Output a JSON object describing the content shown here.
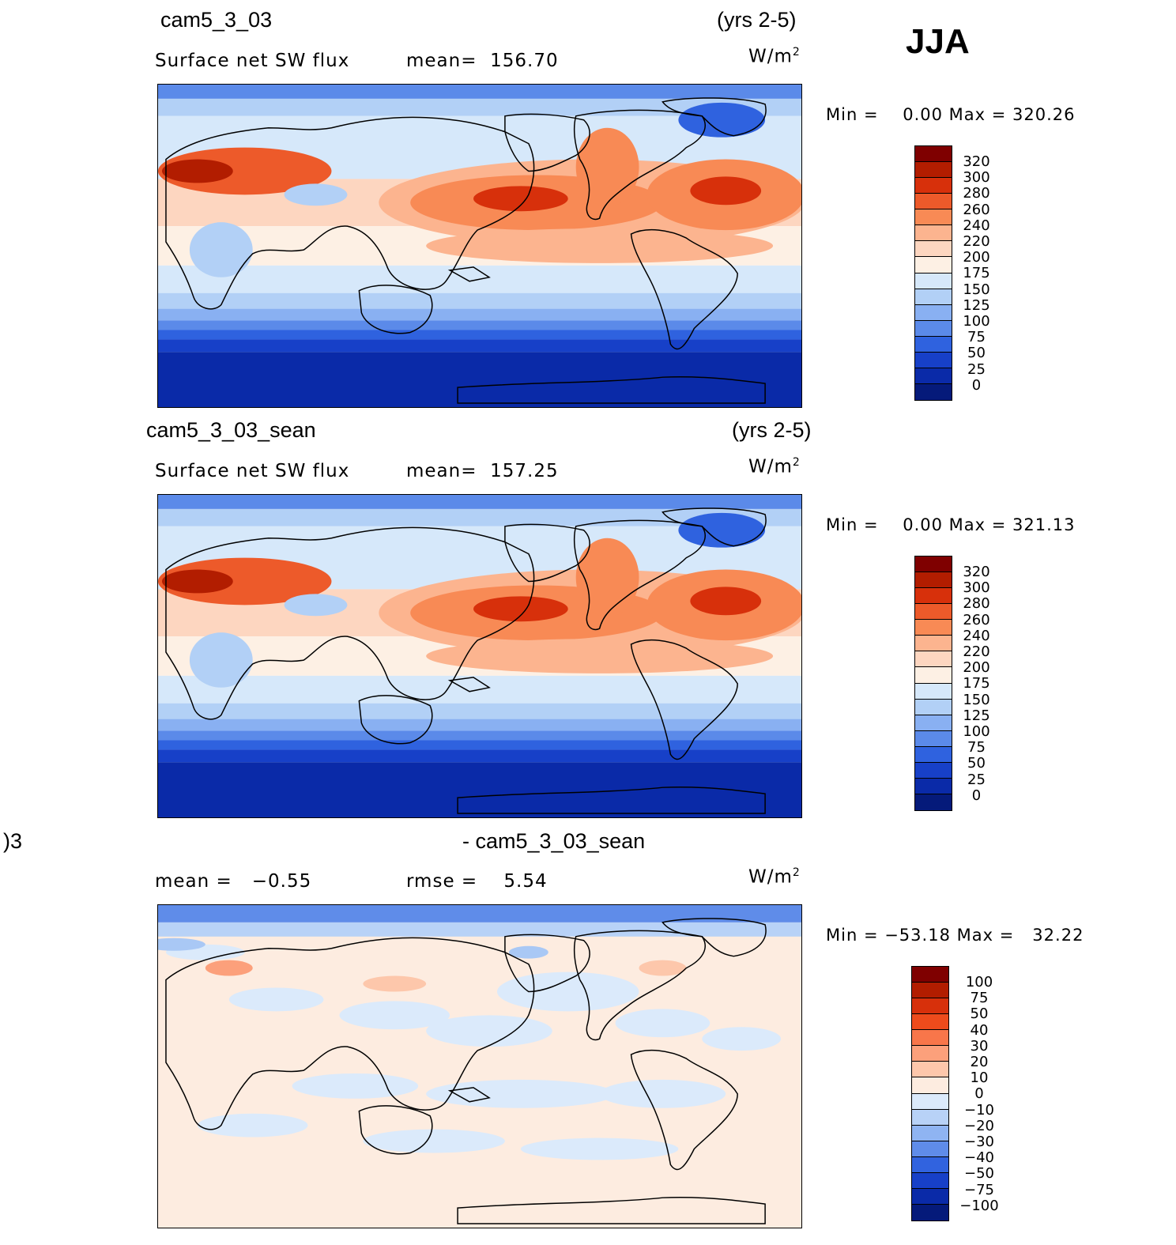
{
  "season": "JJA",
  "panels": [
    {
      "case_name": "cam5_3_03",
      "years": "(yrs 2-5)",
      "variable": "Surface net SW flux",
      "stat_a": "mean=  156.70",
      "stat_b": "",
      "units_base": "W/m",
      "units_exp": "2",
      "minmax": "Min =    0.00 Max = 320.26",
      "colorbar": {
        "labels": [
          "320",
          "300",
          "280",
          "260",
          "240",
          "220",
          "200",
          "175",
          "150",
          "125",
          "100",
          "75",
          "50",
          "25",
          "0"
        ],
        "colors": [
          "#7f0000",
          "#b21d00",
          "#d7300b",
          "#ed5a2a",
          "#f88a55",
          "#fcb48f",
          "#fdd6c0",
          "#fdf0e4",
          "#d6e8fa",
          "#b2d0f6",
          "#89b0f2",
          "#5b8ae9",
          "#2f62df",
          "#1740c8",
          "#0a2aa8",
          "#051a7a"
        ]
      }
    },
    {
      "case_name": "cam5_3_03_sean",
      "years": "(yrs 2-5)",
      "variable": "Surface net SW flux",
      "stat_a": "mean=  157.25",
      "stat_b": "",
      "units_base": "W/m",
      "units_exp": "2",
      "minmax": "Min =    0.00 Max = 321.13",
      "colorbar": {
        "labels": [
          "320",
          "300",
          "280",
          "260",
          "240",
          "220",
          "200",
          "175",
          "150",
          "125",
          "100",
          "75",
          "50",
          "25",
          "0"
        ],
        "colors": [
          "#7f0000",
          "#b21d00",
          "#d7300b",
          "#ed5a2a",
          "#f88a55",
          "#fcb48f",
          "#fdd6c0",
          "#fdf0e4",
          "#d6e8fa",
          "#b2d0f6",
          "#89b0f2",
          "#5b8ae9",
          "#2f62df",
          "#1740c8",
          "#0a2aa8",
          "#051a7a"
        ]
      }
    },
    {
      "case_name": "- cam5_3_03_sean",
      "case_prefix": ")3",
      "years": "",
      "variable": "mean =   −0.55",
      "stat_a": "rmse =    5.54",
      "stat_b": "",
      "units_base": "W/m",
      "units_exp": "2",
      "minmax": "Min = −53.18 Max =   32.22",
      "colorbar": {
        "labels": [
          "100",
          "75",
          "50",
          "40",
          "30",
          "20",
          "10",
          "0",
          "−10",
          "−20",
          "−30",
          "−40",
          "−50",
          "−75",
          "−100"
        ],
        "colors": [
          "#7f0000",
          "#b21d00",
          "#d7300b",
          "#ed4b1c",
          "#f8764a",
          "#fca07b",
          "#fdc7ab",
          "#fdece0",
          "#dbeafb",
          "#b8d2f7",
          "#8fb4f2",
          "#5f8ce9",
          "#3163df",
          "#1740c8",
          "#0a2aa8",
          "#051a7a"
        ]
      }
    }
  ]
}
